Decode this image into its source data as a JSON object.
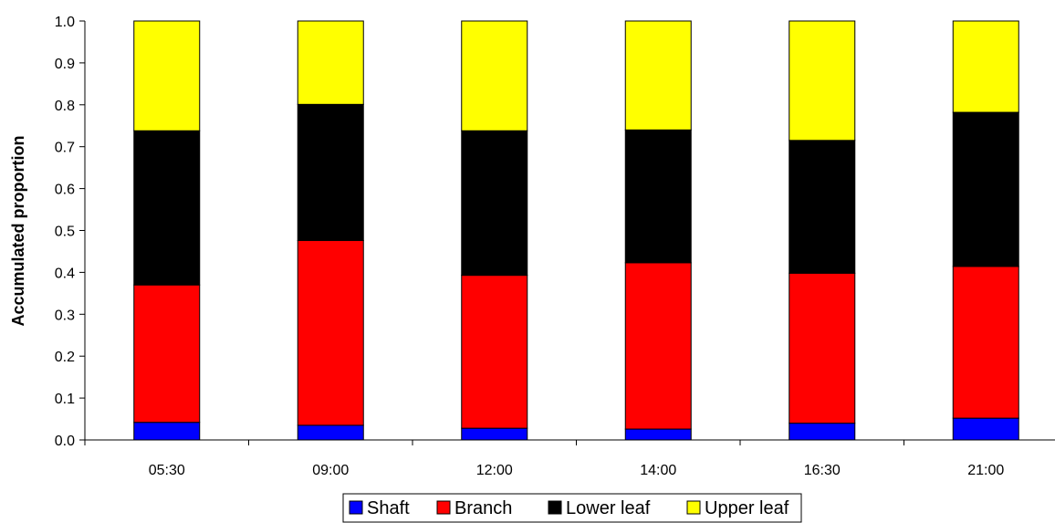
{
  "chart_data": {
    "type": "bar",
    "stacked": true,
    "title": "",
    "xlabel": "",
    "ylabel": "Accumulated proportion",
    "ylim": [
      0,
      1.0
    ],
    "yticks": [
      "0.0",
      "0.1",
      "0.2",
      "0.3",
      "0.4",
      "0.5",
      "0.6",
      "0.7",
      "0.8",
      "0.9",
      "1.0"
    ],
    "categories": [
      "05:30",
      "09:00",
      "12:00",
      "14:00",
      "16:30",
      "21:00"
    ],
    "series": [
      {
        "name": "Shaft",
        "color": "#0000ff",
        "values": [
          0.042,
          0.035,
          0.028,
          0.026,
          0.04,
          0.052
        ]
      },
      {
        "name": "Branch",
        "color": "#ff0000",
        "values": [
          0.328,
          0.441,
          0.365,
          0.397,
          0.358,
          0.362
        ]
      },
      {
        "name": "Lower leaf",
        "color": "#000000",
        "values": [
          0.368,
          0.325,
          0.345,
          0.317,
          0.317,
          0.368
        ]
      },
      {
        "name": "Upper leaf",
        "color": "#ffff00",
        "values": [
          0.262,
          0.199,
          0.262,
          0.26,
          0.285,
          0.218
        ]
      }
    ],
    "legend": "bottom",
    "grid": false
  }
}
